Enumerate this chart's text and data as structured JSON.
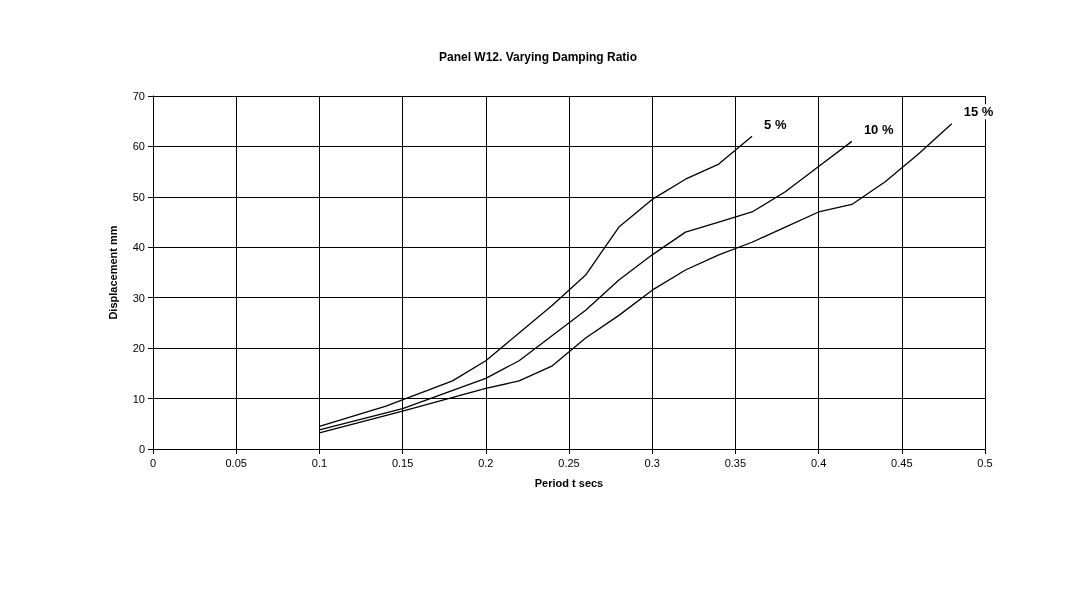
{
  "chart_data": {
    "type": "line",
    "title": "Panel W12. Varying Damping Ratio",
    "xlabel": "Period t secs",
    "ylabel": "Displacement mm",
    "xlim": [
      0,
      0.5
    ],
    "xticks": [
      0,
      0.05,
      0.1,
      0.15,
      0.2,
      0.25,
      0.3,
      0.35,
      0.4,
      0.45,
      0.5
    ],
    "ylim": [
      0,
      70
    ],
    "yticks": [
      0,
      10,
      20,
      30,
      40,
      50,
      60,
      70
    ],
    "grid": true,
    "legend": false,
    "marker": "none",
    "line_style": "solid",
    "series": [
      {
        "name": "5 %",
        "color": "#000000",
        "x": [
          0.1,
          0.14,
          0.18,
          0.2,
          0.22,
          0.24,
          0.26,
          0.28,
          0.3,
          0.32,
          0.34,
          0.36
        ],
        "values": [
          4.5,
          8.5,
          13.5,
          17.5,
          23,
          28.5,
          34.5,
          44,
          49.5,
          53.5,
          56.5,
          62
        ]
      },
      {
        "name": "10 %",
        "color": "#000000",
        "x": [
          0.1,
          0.15,
          0.2,
          0.22,
          0.24,
          0.26,
          0.28,
          0.3,
          0.32,
          0.34,
          0.36,
          0.38,
          0.4,
          0.42
        ],
        "values": [
          3.8,
          8,
          14,
          17.5,
          22.5,
          27.5,
          33.5,
          38.5,
          43,
          45,
          47,
          51,
          56,
          61
        ]
      },
      {
        "name": "15 %",
        "color": "#000000",
        "x": [
          0.1,
          0.15,
          0.2,
          0.22,
          0.24,
          0.26,
          0.28,
          0.3,
          0.32,
          0.34,
          0.36,
          0.38,
          0.4,
          0.42,
          0.44,
          0.46,
          0.48
        ],
        "values": [
          3.2,
          7.5,
          12,
          13.5,
          16.5,
          22,
          26.5,
          31.5,
          35.5,
          38.5,
          41,
          44,
          47,
          48.5,
          53,
          58.5,
          64.5
        ]
      }
    ]
  }
}
